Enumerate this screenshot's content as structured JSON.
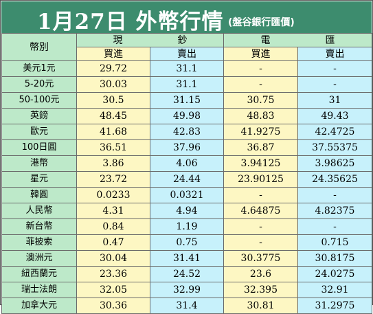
{
  "title": "1月27日 外幣行情",
  "source": "(盤谷銀行匯價)",
  "header": {
    "currency_col": "幣別",
    "cash_left": "現",
    "cash_right": "鈔",
    "wire_left": "電",
    "wire_right": "匯",
    "buy": "買進",
    "sell": "賣出"
  },
  "rows": [
    {
      "name": "美元1元",
      "cash_buy": "29.72",
      "cash_sell": "31.1",
      "wire_buy": "-",
      "wire_sell": "-"
    },
    {
      "name": "5-20元",
      "cash_buy": "30.03",
      "cash_sell": "31.1",
      "wire_buy": "-",
      "wire_sell": "-"
    },
    {
      "name": "50-100元",
      "cash_buy": "30.5",
      "cash_sell": "31.15",
      "wire_buy": "30.75",
      "wire_sell": "31"
    },
    {
      "name": "英鎊",
      "cash_buy": "48.45",
      "cash_sell": "49.98",
      "wire_buy": "48.83",
      "wire_sell": "49.43"
    },
    {
      "name": "歐元",
      "cash_buy": "41.68",
      "cash_sell": "42.83",
      "wire_buy": "41.9275",
      "wire_sell": "42.4725"
    },
    {
      "name": "100日圓",
      "cash_buy": "36.51",
      "cash_sell": "37.96",
      "wire_buy": "36.87",
      "wire_sell": "37.55375"
    },
    {
      "name": "港幣",
      "cash_buy": "3.86",
      "cash_sell": "4.06",
      "wire_buy": "3.94125",
      "wire_sell": "3.98625"
    },
    {
      "name": "星元",
      "cash_buy": "23.72",
      "cash_sell": "24.44",
      "wire_buy": "23.90125",
      "wire_sell": "24.35625"
    },
    {
      "name": "韓圓",
      "cash_buy": "0.0233",
      "cash_sell": "0.0321",
      "wire_buy": "-",
      "wire_sell": "-"
    },
    {
      "name": "人民幣",
      "cash_buy": "4.31",
      "cash_sell": "4.94",
      "wire_buy": "4.64875",
      "wire_sell": "4.82375"
    },
    {
      "name": "新台幣",
      "cash_buy": "0.84",
      "cash_sell": "1.19",
      "wire_buy": "-",
      "wire_sell": "-"
    },
    {
      "name": "菲披索",
      "cash_buy": "0.47",
      "cash_sell": "0.75",
      "wire_buy": "-",
      "wire_sell": "0.715"
    },
    {
      "name": "澳洲元",
      "cash_buy": "30.04",
      "cash_sell": "31.41",
      "wire_buy": "30.3775",
      "wire_sell": "30.8175"
    },
    {
      "name": "紐西蘭元",
      "cash_buy": "23.36",
      "cash_sell": "24.52",
      "wire_buy": "23.6",
      "wire_sell": "24.0275"
    },
    {
      "name": "瑞士法朗",
      "cash_buy": "32.05",
      "cash_sell": "32.99",
      "wire_buy": "32.395",
      "wire_sell": "32.91"
    },
    {
      "name": "加拿大元",
      "cash_buy": "30.36",
      "cash_sell": "31.4",
      "wire_buy": "30.81",
      "wire_sell": "31.2975"
    }
  ],
  "colors": {
    "title_bg": "#3d8c6e",
    "label_col": "#bde9c9",
    "buy_col": "#fdf7c3",
    "sell_col": "#c7f1fb"
  }
}
